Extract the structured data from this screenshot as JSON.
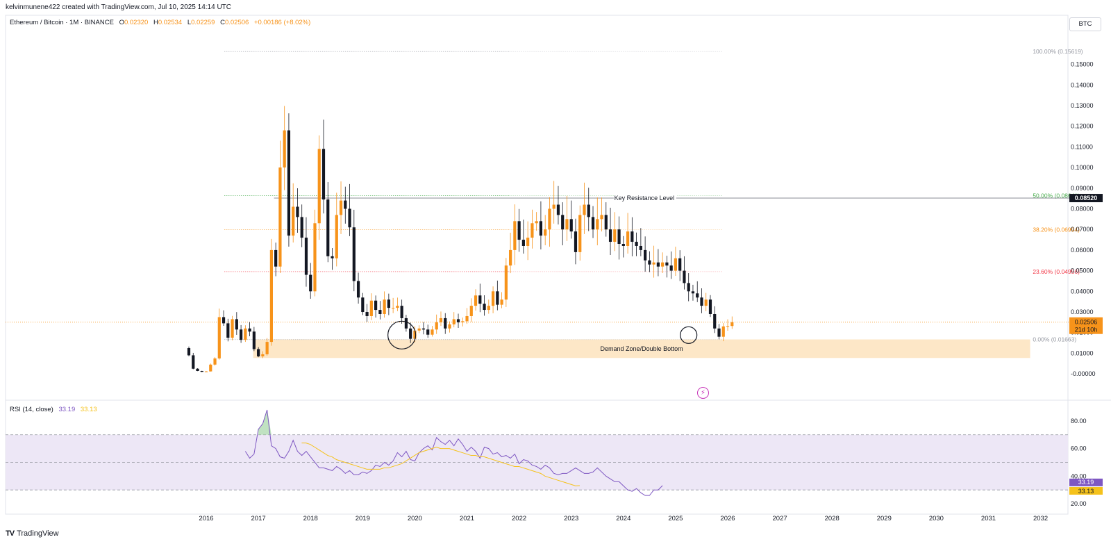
{
  "header": {
    "attribution": "kelvinmunene422 created with TradingView.com, Jul 10, 2025 14:14 UTC",
    "symbol": "Ethereum / Bitcoin · 1M · BINANCE",
    "ohlc": {
      "o_label": "O",
      "o": "0.02320",
      "h_label": "H",
      "h": "0.02534",
      "l_label": "L",
      "l": "0.02259",
      "c_label": "C",
      "c": "0.02506",
      "change": "+0.00186 (+8.02%)"
    },
    "currency": "BTC"
  },
  "rsi_header": {
    "label": "RSI (14, close)",
    "rsi": "33.19",
    "ma": "33.13"
  },
  "footer": {
    "logo": "TV",
    "brand": "TradingView"
  },
  "icons": {
    "bolt": "lightning-icon"
  },
  "colors": {
    "bull": "#f7931a",
    "bear": "#131722",
    "zone": "#fde7c7",
    "rsi": "#7e57c2",
    "rsi_ma": "#f5c21b",
    "fib100": "#9598a1",
    "fib50": "#4caf50",
    "fib382": "#f7931a",
    "fib236": "#f23645",
    "fib0": "#9598a1",
    "rsi_band": "#ede7f6",
    "price_tag": "#f7931a",
    "resistance_tag": "#131722"
  },
  "chart_data": [
    {
      "type": "candlestick",
      "title": "Ethereum / Bitcoin · 1M · BINANCE",
      "y_axis": {
        "range": [
          -0.005,
          0.165
        ],
        "ticks": [
          "0.15000",
          "0.14000",
          "0.13000",
          "0.12000",
          "0.11000",
          "0.10000",
          "0.09000",
          "0.08000",
          "0.07000",
          "0.06000",
          "0.05000",
          "0.04000",
          "0.03000",
          "0.02000",
          "0.01000",
          "-0.00000"
        ]
      },
      "x_axis": {
        "ticks": [
          {
            "label": "2016",
            "t": 2016
          },
          {
            "label": "2017",
            "t": 2017
          },
          {
            "label": "2018",
            "t": 2018
          },
          {
            "label": "2019",
            "t": 2019
          },
          {
            "label": "2020",
            "t": 2020
          },
          {
            "label": "2021",
            "t": 2021
          },
          {
            "label": "2022",
            "t": 2022
          },
          {
            "label": "2023",
            "t": 2023
          },
          {
            "label": "2024",
            "t": 2024
          },
          {
            "label": "2025",
            "t": 2025
          },
          {
            "label": "2026",
            "t": 2026
          },
          {
            "label": "2027",
            "t": 2027
          },
          {
            "label": "2028",
            "t": 2028
          },
          {
            "label": "2029",
            "t": 2029
          },
          {
            "label": "2030",
            "t": 2030
          },
          {
            "label": "2031",
            "t": 2031
          },
          {
            "label": "2032",
            "t": 2032
          }
        ]
      },
      "closes": [
        0.009,
        0.0025,
        0.0014,
        0.001,
        0.0012,
        0.0045,
        0.0075,
        0.0275,
        0.0245,
        0.0175,
        0.0265,
        0.0215,
        0.0165,
        0.022,
        0.0205,
        0.012,
        0.0085,
        0.0095,
        0.0155,
        0.06,
        0.052,
        0.1,
        0.118,
        0.067,
        0.081,
        0.076,
        0.066,
        0.048,
        0.04,
        0.073,
        0.109,
        0.0845,
        0.057,
        0.056,
        0.077,
        0.084,
        0.08,
        0.071,
        0.045,
        0.037,
        0.03,
        0.028,
        0.0355,
        0.031,
        0.029,
        0.036,
        0.032,
        0.032,
        0.033,
        0.027,
        0.022,
        0.017,
        0.021,
        0.022,
        0.0215,
        0.019,
        0.0215,
        0.025,
        0.027,
        0.022,
        0.024,
        0.0265,
        0.025,
        0.0255,
        0.028,
        0.033,
        0.038,
        0.034,
        0.031,
        0.033,
        0.04,
        0.0335,
        0.036,
        0.0525,
        0.06,
        0.074,
        0.065,
        0.062,
        0.066,
        0.073,
        0.074,
        0.067,
        0.07,
        0.08,
        0.082,
        0.077,
        0.07,
        0.075,
        0.069,
        0.059,
        0.077,
        0.082,
        0.076,
        0.07,
        0.075,
        0.077,
        0.07,
        0.064,
        0.07,
        0.063,
        0.062,
        0.069,
        0.064,
        0.062,
        0.06,
        0.055,
        0.053,
        0.054,
        0.052,
        0.054,
        0.0525,
        0.05,
        0.056,
        0.05,
        0.044,
        0.04,
        0.039,
        0.037,
        0.033,
        0.036,
        0.029,
        0.022,
        0.018,
        0.023,
        0.0232,
        0.02506
      ],
      "fib_levels": [
        {
          "label": "100.00% (0.15619)",
          "value": 0.15619,
          "color_key": "fib100"
        },
        {
          "label": "50.00% (0.08641)",
          "value": 0.08641,
          "color_key": "fib50"
        },
        {
          "label": "38.20% (0.06994)",
          "value": 0.06994,
          "color_key": "fib382"
        },
        {
          "label": "23.60% (0.04956)",
          "value": 0.04956,
          "color_key": "fib236"
        },
        {
          "label": "0.00% (0.01663)",
          "value": 0.01663,
          "color_key": "fib0"
        }
      ],
      "annotations": {
        "resistance": {
          "label": "Key Resistance Level",
          "value": 0.0852
        },
        "zone": {
          "label": "Demand Zone/Double Bottom",
          "from": 0.0077,
          "to": 0.0167
        },
        "circles": [
          {
            "t": 2019.75,
            "v": 0.0188
          },
          {
            "t": 2025.25,
            "v": 0.0188
          }
        ]
      },
      "price_tags": {
        "resistance": "0.08520",
        "current": "0.02506",
        "countdown": "21d 10h",
        "current_value": 0.02506
      }
    },
    {
      "type": "line",
      "title": "RSI (14, close)",
      "y_axis": {
        "range": [
          15,
          88
        ],
        "ticks": [
          "80.00",
          "60.00",
          "40.00",
          "20.00"
        ]
      },
      "bands": {
        "upper": 70,
        "middle": 50,
        "lower": 30
      },
      "series": [
        {
          "name": "RSI",
          "color_key": "rsi",
          "start_t": 2016.75,
          "values": [
            58,
            53,
            56,
            74,
            78,
            88,
            62,
            60,
            54,
            53,
            58,
            66,
            58,
            55,
            58,
            54,
            50,
            46,
            46,
            45,
            44,
            47,
            45,
            42,
            44,
            41,
            41,
            43,
            42,
            44,
            48,
            47,
            50,
            48,
            51,
            57,
            54,
            58,
            52,
            51,
            57,
            60,
            62,
            59,
            68,
            65,
            63,
            66,
            62,
            67,
            63,
            58,
            61,
            58,
            53,
            61,
            60,
            56,
            57,
            54,
            55,
            53,
            56,
            49,
            52,
            51,
            48,
            47,
            45,
            48,
            46,
            42,
            41,
            42,
            42,
            44,
            46,
            44,
            42,
            42,
            43,
            46,
            43,
            40,
            38,
            36,
            36,
            33,
            30,
            29,
            31,
            28,
            26,
            26,
            30,
            30,
            33.19
          ]
        },
        {
          "name": "MA",
          "color_key": "rsi_ma",
          "start_t": 2017.83,
          "values": [
            64,
            64,
            63,
            61,
            59,
            57,
            55,
            54,
            52,
            51,
            50,
            49,
            48,
            47,
            46,
            45,
            45,
            45,
            45,
            46,
            46,
            47,
            48,
            49,
            51,
            53,
            55,
            57,
            58,
            59,
            60,
            61,
            60,
            60,
            60,
            59,
            58,
            57,
            56,
            55,
            55,
            54,
            54,
            53,
            52,
            51,
            50,
            49,
            48,
            47,
            47,
            46,
            45,
            44,
            43,
            42,
            40,
            39,
            38,
            37,
            36,
            35,
            34,
            33,
            33.13
          ]
        }
      ],
      "last": {
        "rsi": "33.19",
        "ma": "33.13"
      }
    }
  ]
}
